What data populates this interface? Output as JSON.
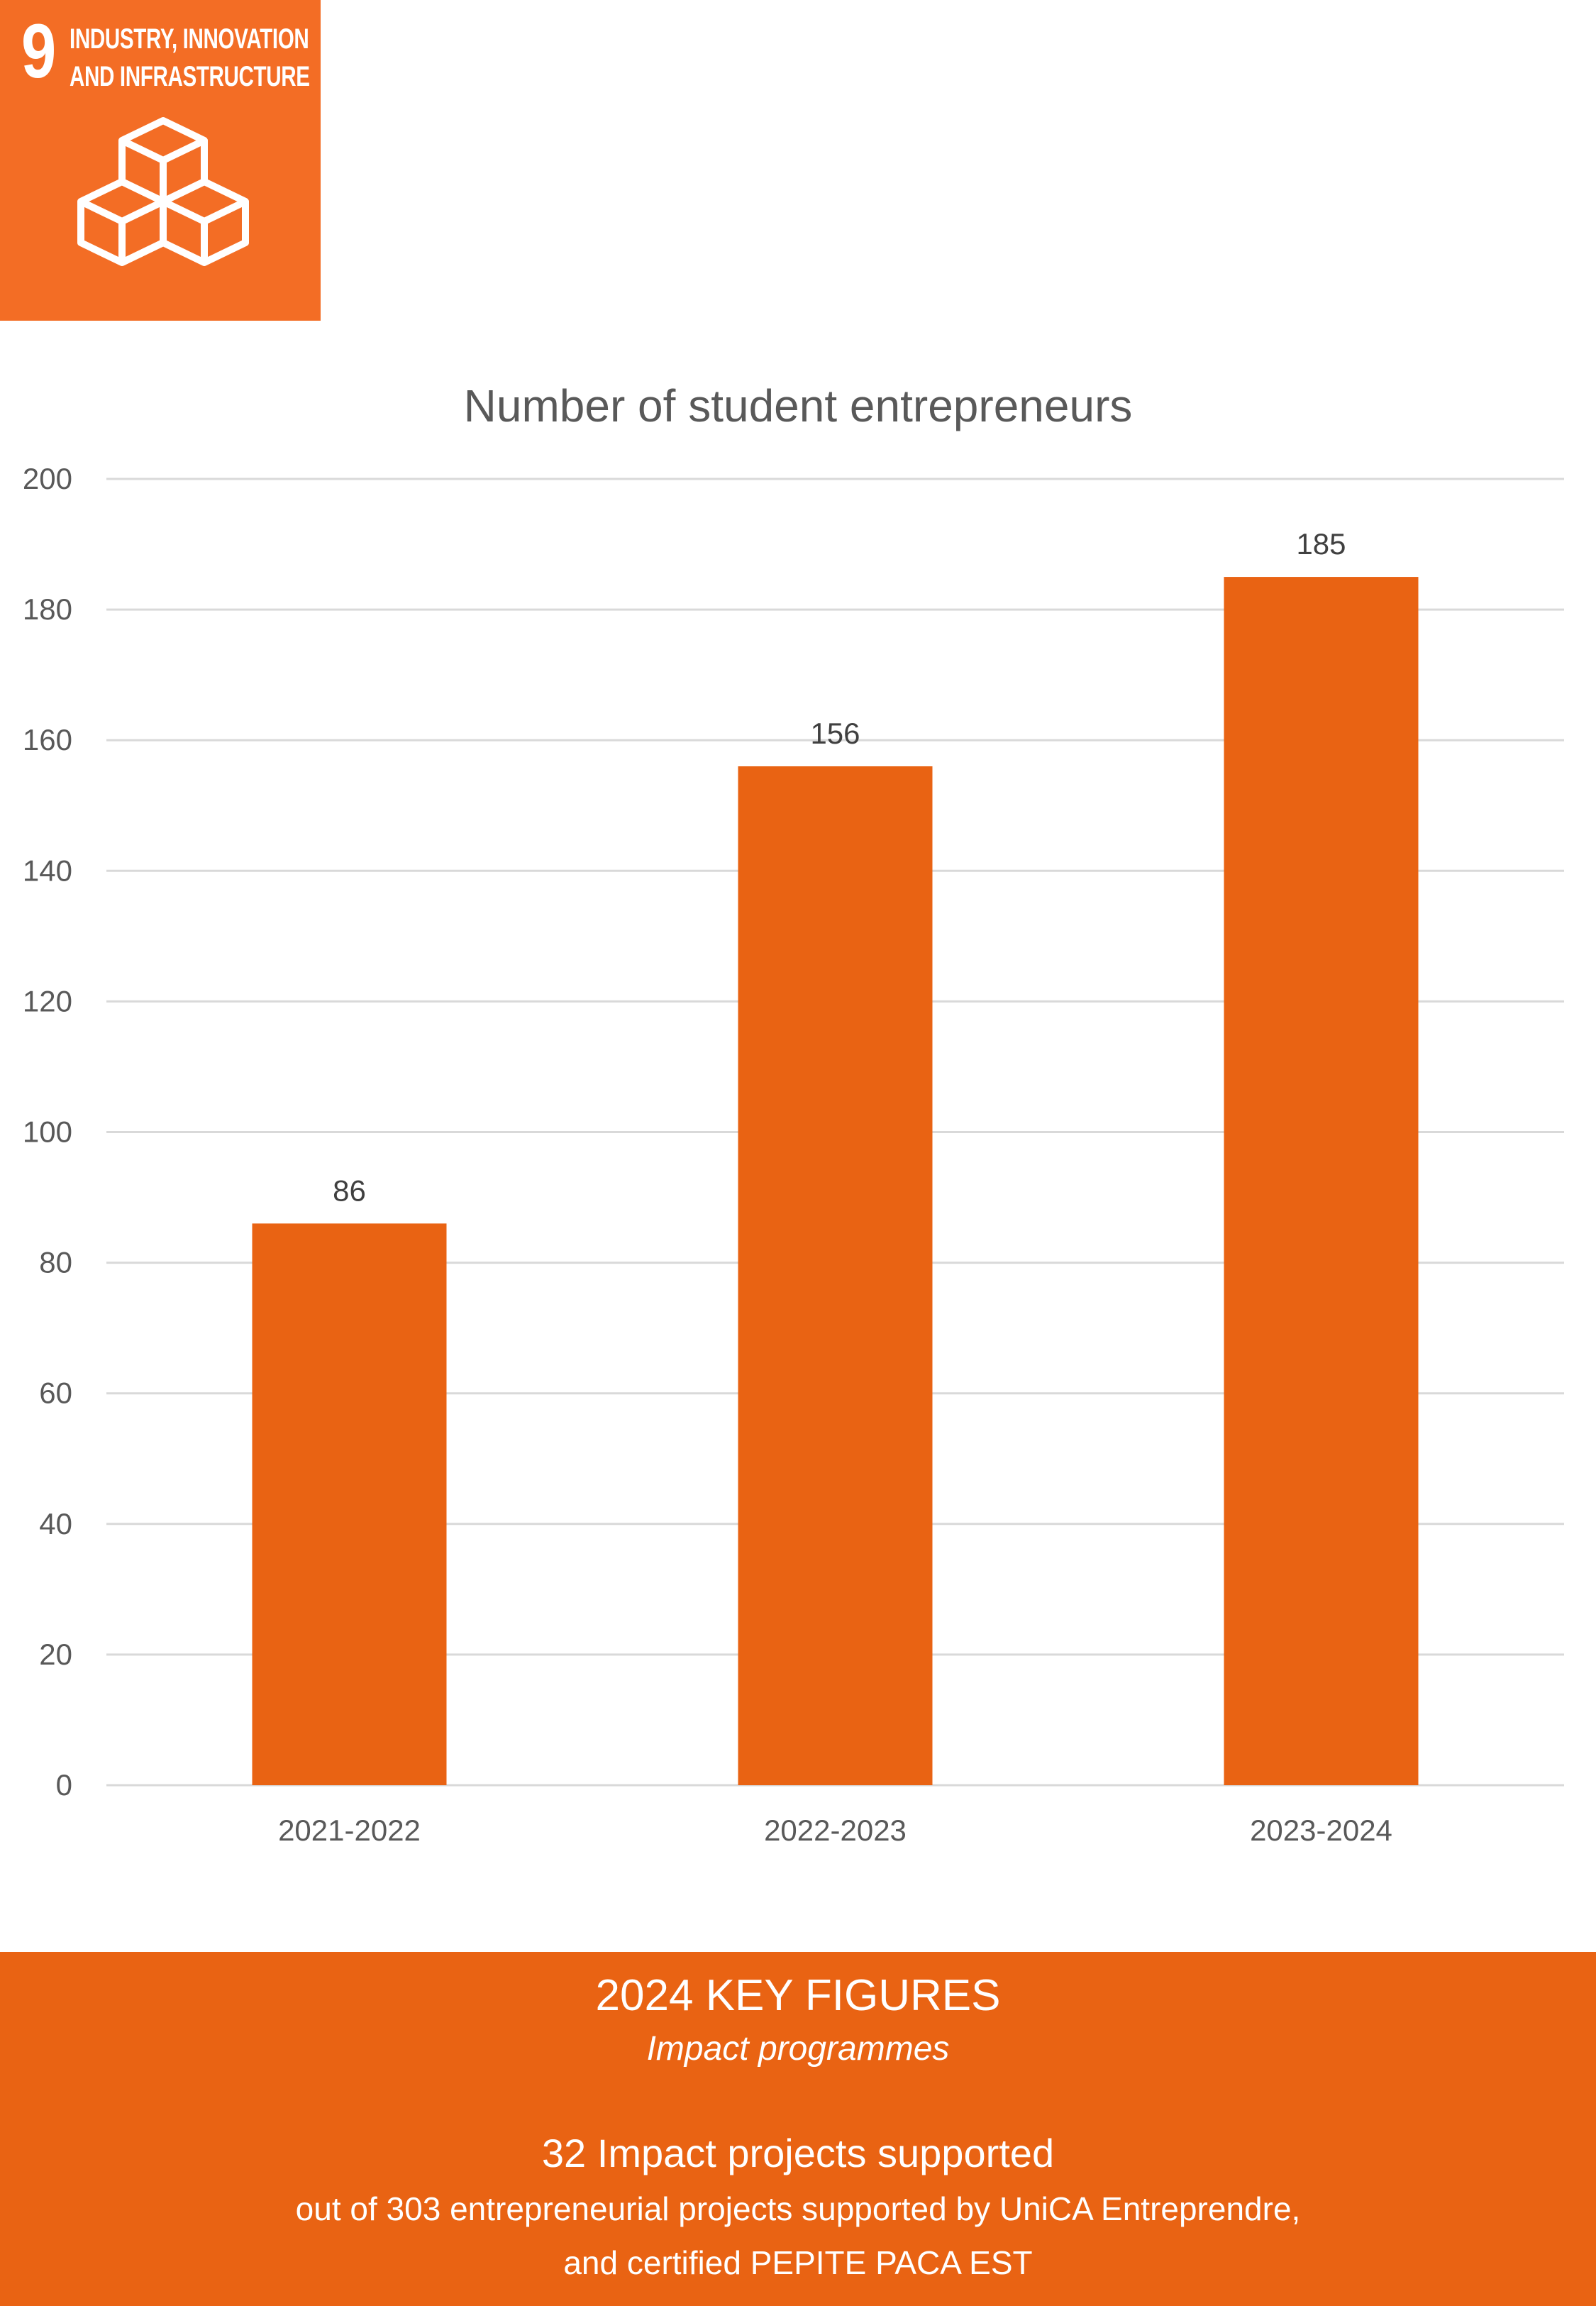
{
  "badge": {
    "number": "9",
    "title_line1": "INDUSTRY, INNOVATION",
    "title_line2": "AND INFRASTRUCTURE",
    "icon": "stacked-cubes-icon",
    "color": "#f36d25"
  },
  "chart_data": {
    "type": "bar",
    "title": "Number of student entrepreneurs",
    "xlabel": "",
    "ylabel": "",
    "categories": [
      "2021-2022",
      "2022-2023",
      "2023-2024"
    ],
    "values": [
      86,
      156,
      185
    ],
    "ylim": [
      0,
      200
    ],
    "yticks": [
      0,
      20,
      40,
      60,
      80,
      100,
      120,
      140,
      160,
      180,
      200
    ],
    "grid": true,
    "legend": "none",
    "bar_color": "#e96313",
    "data_labels": true
  },
  "key_figures": {
    "heading": "2024 KEY FIGURES",
    "subheading": "Impact programmes",
    "stat": "32 Impact projects supported",
    "detail_line1": "out of 303 entrepreneurial projects supported by UniCA Entreprendre,",
    "detail_line2": "and certified PEPITE PACA EST",
    "background": "#e96313"
  }
}
